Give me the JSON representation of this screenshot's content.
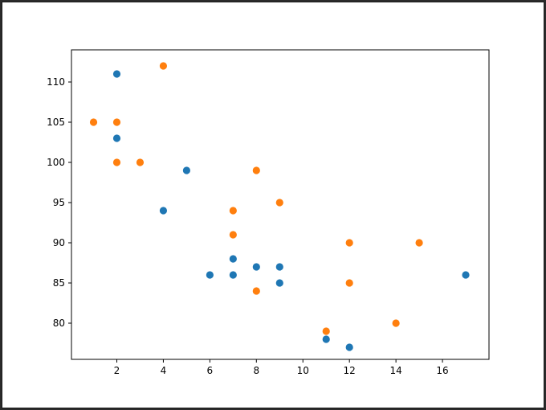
{
  "chart_data": {
    "type": "scatter",
    "title": "",
    "xlabel": "",
    "ylabel": "",
    "xlim": [
      0.05,
      18.0
    ],
    "ylim": [
      75.5,
      114.0
    ],
    "xticks": [
      2,
      4,
      6,
      8,
      10,
      12,
      14,
      16
    ],
    "yticks": [
      80,
      85,
      90,
      95,
      100,
      105,
      110
    ],
    "grid": false,
    "series": [
      {
        "color": "#1f77b4",
        "points": [
          [
            2,
            111
          ],
          [
            2,
            103
          ],
          [
            5,
            99
          ],
          [
            4,
            94
          ],
          [
            6,
            86
          ],
          [
            7,
            86
          ],
          [
            7,
            88
          ],
          [
            8,
            87
          ],
          [
            9,
            87
          ],
          [
            9,
            85
          ],
          [
            11,
            78
          ],
          [
            12,
            77
          ],
          [
            17,
            86
          ]
        ]
      },
      {
        "color": "#ff7f0e",
        "points": [
          [
            4,
            112
          ],
          [
            1,
            105
          ],
          [
            2,
            105
          ],
          [
            2,
            100
          ],
          [
            3,
            100
          ],
          [
            8,
            99
          ],
          [
            9,
            95
          ],
          [
            7,
            94
          ],
          [
            7,
            91
          ],
          [
            12,
            90
          ],
          [
            15,
            90
          ],
          [
            12,
            85
          ],
          [
            8,
            84
          ],
          [
            11,
            79
          ],
          [
            14,
            80
          ]
        ]
      }
    ]
  }
}
